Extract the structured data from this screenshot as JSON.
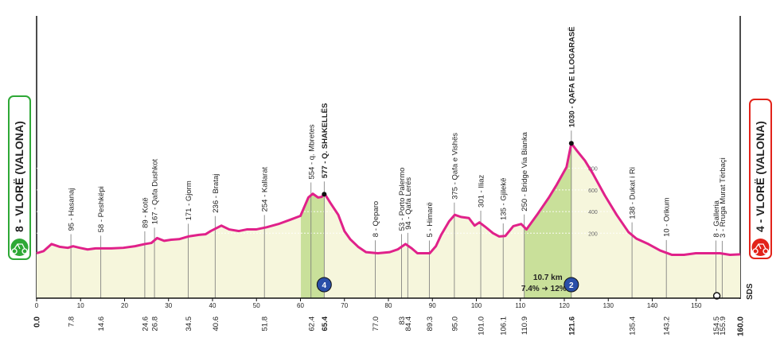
{
  "chart_data": {
    "type": "profile",
    "xlim": [
      0,
      160
    ],
    "xticks": [
      0,
      10,
      20,
      30,
      40,
      50,
      60,
      70,
      80,
      90,
      100,
      110,
      120,
      130,
      140,
      150
    ],
    "ylim": [
      -400,
      2200
    ],
    "yticks": [
      200,
      400,
      600,
      800
    ],
    "color": "#e0218a",
    "profile": {
      "km": [
        0,
        1.6,
        3.4,
        5.2,
        7.1,
        8.3,
        9.8,
        11.6,
        13.4,
        17.0,
        19.7,
        22.4,
        24.6,
        26.1,
        27.4,
        29.0,
        30.6,
        32.4,
        34.5,
        36.9,
        38.4,
        39.6,
        42.0,
        43.8,
        46.0,
        47.8,
        49.9,
        52.3,
        55.0,
        57.7,
        60.0,
        61.8,
        62.8,
        64.0,
        64.8,
        65.5,
        66.8,
        68.6,
        70.0,
        71.3,
        73.1,
        74.9,
        77.6,
        80.3,
        82.1,
        83.9,
        85.3,
        86.6,
        89.4,
        90.8,
        92.0,
        93.8,
        95.1,
        96.5,
        98.3,
        99.6,
        100.7,
        102.0,
        103.8,
        105.2,
        106.6,
        108.4,
        110.2,
        111.4,
        113.8,
        116.5,
        118.3,
        120.5,
        121.6,
        122.9,
        124.7,
        126.5,
        129.2,
        131.9,
        134.6,
        136.4,
        139.1,
        141.8,
        144.5,
        147.2,
        149.9,
        152.6,
        155.4,
        157.7,
        160
      ],
      "elevation": [
        15,
        35,
        100,
        75,
        65,
        80,
        65,
        50,
        60,
        60,
        65,
        80,
        100,
        110,
        155,
        130,
        140,
        145,
        170,
        185,
        190,
        220,
        270,
        235,
        220,
        235,
        235,
        255,
        285,
        325,
        360,
        530,
        565,
        530,
        535,
        565,
        480,
        370,
        220,
        145,
        75,
        25,
        15,
        25,
        50,
        100,
        60,
        15,
        15,
        80,
        185,
        310,
        370,
        350,
        340,
        270,
        300,
        260,
        200,
        170,
        175,
        265,
        285,
        235,
        370,
        530,
        650,
        810,
        1030,
        960,
        870,
        750,
        550,
        370,
        210,
        150,
        100,
        40,
        0,
        0,
        15,
        15,
        15,
        0,
        5
      ]
    },
    "start": {
      "km": {
        "value": 0,
        "label": "0.0"
      },
      "label": "8 - VLORË (VALONA)"
    },
    "finish": {
      "km": {
        "value": 160,
        "label": "160.0"
      },
      "label": "4 - VLORË (VALONA)"
    },
    "waypoints": [
      {
        "km": 7.8,
        "label": "95 - Hasanaj"
      },
      {
        "km": 14.6,
        "label": "58 - Peshkëpi"
      },
      {
        "km": 24.6,
        "label": "89 - Kotë"
      },
      {
        "km": 26.8,
        "label": "167 - Qafa Dushkot"
      },
      {
        "km": 34.5,
        "label": "171 - Gjorm"
      },
      {
        "km": 40.6,
        "label": "236 - Brataj"
      },
      {
        "km": 51.8,
        "label": "254 - Kallarat"
      },
      {
        "km": 62.4,
        "label": "554 - q. Mbretes"
      },
      {
        "km": 65.4,
        "label": "577 - Q. SHAKELLËS",
        "bold": true
      },
      {
        "km": {
          "value": 77,
          "label": "77.0"
        },
        "label": "8 - Qeparo"
      },
      {
        "km": 83.0,
        "label": "53 - Porto Palermo"
      },
      {
        "km": 84.4,
        "label": "94 - Qafa Lerës"
      },
      {
        "km": 89.3,
        "label": "5 - Himarë"
      },
      {
        "km": {
          "value": 95,
          "label": "95.0"
        },
        "label": "375 - Qafa e Vishës"
      },
      {
        "km": {
          "value": 101,
          "label": "101.0"
        },
        "label": "301 - Iliaz"
      },
      {
        "km": 106.1,
        "label": "135 - Gjilekë"
      },
      {
        "km": 110.9,
        "label": "250 - Bridge Via Bianka"
      },
      {
        "km": 121.6,
        "label": "1030 - QAFA E LLOGARASË",
        "bold": true
      },
      {
        "km": 135.4,
        "label": "138 - Dukat i Ri"
      },
      {
        "km": 143.2,
        "label": "10 - Orikum"
      },
      {
        "km": 154.5,
        "label": "8 - Galleria"
      },
      {
        "km": 155.9,
        "label": "3 - Rruga Murat Tërbaçi"
      }
    ],
    "climbs": [
      {
        "start": 60.1,
        "end": 65.4,
        "category": "4"
      },
      {
        "start": 110.9,
        "end": 121.6,
        "category": "2",
        "length": "10.7 km",
        "gradient": "7.4% ➜ 12%"
      }
    ],
    "logo": "SDS"
  }
}
